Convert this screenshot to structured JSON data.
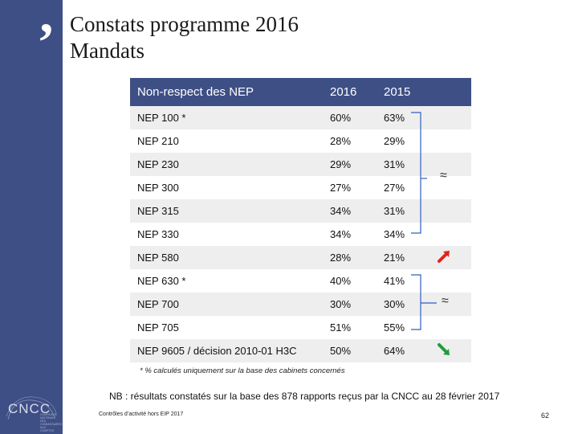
{
  "title": {
    "line1": "Constats programme 2016",
    "line2": "Mandats"
  },
  "decor": {
    "quote_glyph": "’"
  },
  "logo": {
    "text": "CNCC",
    "subtext": "COMPAGNIE NATIONALE DES COMMISSAIRES AUX COMPTES"
  },
  "table": {
    "headers": [
      "Non-respect des NEP",
      "2016",
      "2015"
    ],
    "rows": [
      {
        "nep": "NEP 100 *",
        "y2016": "60%",
        "y2015": "63%"
      },
      {
        "nep": "NEP 210",
        "y2016": "28%",
        "y2015": "29%"
      },
      {
        "nep": "NEP 230",
        "y2016": "29%",
        "y2015": "31%"
      },
      {
        "nep": "NEP 300",
        "y2016": "27%",
        "y2015": "27%"
      },
      {
        "nep": "NEP 315",
        "y2016": "34%",
        "y2015": "31%"
      },
      {
        "nep": "NEP 330",
        "y2016": "34%",
        "y2015": "34%"
      },
      {
        "nep": "NEP 580",
        "y2016": "28%",
        "y2015": "21%"
      },
      {
        "nep": "NEP 630 *",
        "y2016": "40%",
        "y2015": "41%"
      },
      {
        "nep": "NEP 700",
        "y2016": "30%",
        "y2015": "30%"
      },
      {
        "nep": "NEP 705",
        "y2016": "51%",
        "y2015": "55%"
      },
      {
        "nep": "NEP 9605 / décision 2010-01 H3C",
        "y2016": "50%",
        "y2015": "64%"
      }
    ]
  },
  "indicators": {
    "approx_symbol": "≈",
    "colors": {
      "up": "#e0241b",
      "down": "#1f9d3a",
      "bracket": "#2f5fbf"
    }
  },
  "footnote": "* % calculés uniquement sur la base des cabinets concernés",
  "nb": "NB : résultats constatés sur la base des 878 rapports reçus par la CNCC au 28 février 2017",
  "footer": "Contrôles d’activité hors EIP 2017",
  "page_number": "62"
}
